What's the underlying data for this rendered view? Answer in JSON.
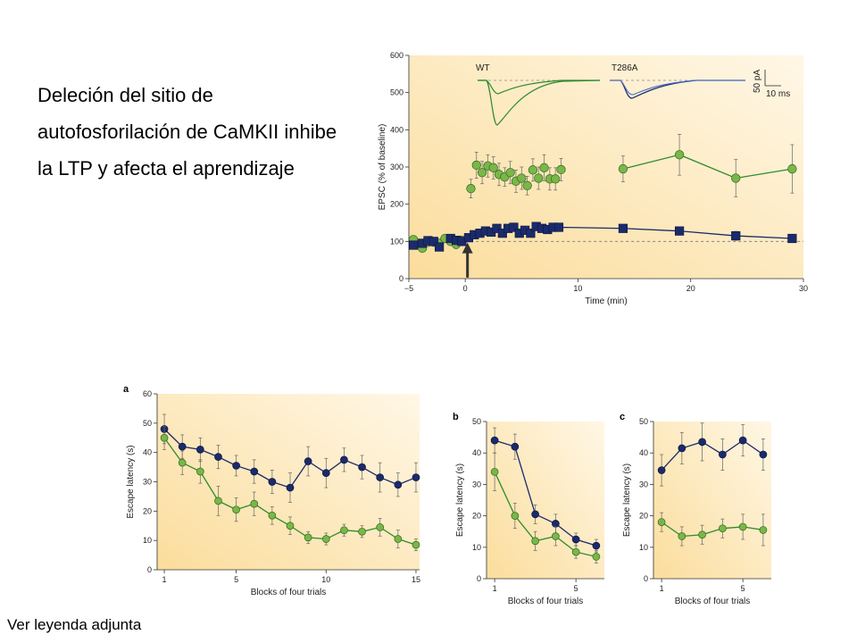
{
  "slide": {
    "title": "Deleción del sitio de autofosforilación de CaMKII inhibe la LTP y afecta el aprendizaje",
    "footnote": "Ver leyenda adjunta"
  },
  "colors": {
    "wt": "#7ab648",
    "wt_line": "#2e8b2e",
    "t286a": "#1b2a6b",
    "bg_light": "#fff7e6",
    "bg_dark": "#fbdd9c"
  },
  "icons": {
    "arrow": "up-arrow-icon"
  },
  "chart_data": [
    {
      "id": "ltp",
      "type": "line",
      "panel": "",
      "title": "",
      "xlabel": "Time (min)",
      "ylabel": "EPSC (% of baseline)",
      "xlim": [
        -5,
        30
      ],
      "ylim": [
        0,
        600
      ],
      "xticks": [
        -5,
        0,
        10,
        20,
        30
      ],
      "xtick_labels": [
        "−5",
        "0",
        "10",
        "20",
        "30"
      ],
      "yticks": [
        0,
        100,
        200,
        300,
        400,
        500,
        600
      ],
      "baseline": 100,
      "stimulus_time": 0.2,
      "inset": {
        "left_label": "WT",
        "right_label": "T286A",
        "scale_y": "50 pA",
        "scale_x": "10 ms"
      },
      "series": [
        {
          "name": "WT",
          "marker": "circle",
          "x": [
            -4.6,
            -3.8,
            -3.3,
            -2.8,
            -2.3,
            -1.8,
            -1.3,
            -0.8,
            -0.3,
            0.5,
            1.0,
            1.5,
            2.0,
            2.5,
            3.0,
            3.5,
            4.0,
            4.5,
            5.0,
            5.5,
            6.0,
            6.5,
            7.0,
            7.5,
            8.0,
            8.5,
            14,
            19,
            24,
            29
          ],
          "y": [
            105,
            82,
            98,
            98,
            95,
            108,
            100,
            92,
            103,
            242,
            305,
            285,
            303,
            298,
            280,
            273,
            285,
            262,
            270,
            250,
            292,
            270,
            298,
            268,
            268,
            293,
            295,
            333,
            270,
            295
          ],
          "err": [
            8,
            8,
            8,
            8,
            8,
            8,
            8,
            8,
            8,
            25,
            35,
            30,
            30,
            30,
            30,
            25,
            30,
            30,
            30,
            25,
            30,
            30,
            35,
            30,
            30,
            30,
            35,
            55,
            50,
            65
          ],
          "line_from_index": 26
        },
        {
          "name": "T286A",
          "marker": "square",
          "x": [
            -4.6,
            -3.8,
            -3.3,
            -2.8,
            -2.3,
            -1.3,
            -0.8,
            -0.3,
            0.3,
            0.8,
            1.3,
            1.8,
            2.3,
            2.8,
            3.3,
            3.8,
            4.3,
            4.8,
            5.3,
            5.8,
            6.3,
            6.8,
            7.3,
            7.8,
            8.3,
            14,
            19,
            24,
            29
          ],
          "y": [
            90,
            95,
            102,
            100,
            85,
            108,
            103,
            100,
            110,
            118,
            122,
            128,
            125,
            135,
            122,
            135,
            138,
            122,
            130,
            122,
            140,
            135,
            132,
            138,
            138,
            135,
            128,
            115,
            108
          ],
          "err": [
            8,
            8,
            8,
            8,
            8,
            8,
            8,
            8,
            8,
            8,
            8,
            8,
            8,
            8,
            8,
            8,
            8,
            8,
            8,
            8,
            8,
            8,
            8,
            10,
            10,
            10,
            10,
            12,
            10
          ],
          "line_from_index": 24
        }
      ]
    },
    {
      "id": "a",
      "type": "line",
      "panel": "a",
      "xlabel": "Blocks of four trials",
      "ylabel": "Escape latency (s)",
      "xlim": [
        0.6,
        15.2
      ],
      "ylim": [
        0,
        60
      ],
      "xticks": [
        1,
        5,
        10,
        15
      ],
      "yticks": [
        0,
        10,
        20,
        30,
        40,
        50,
        60
      ],
      "series": [
        {
          "name": "T286A",
          "x": [
            1,
            2,
            3,
            4,
            5,
            6,
            7,
            8,
            9,
            10,
            11,
            12,
            13,
            14,
            15
          ],
          "y": [
            48,
            42,
            41,
            38.5,
            35.5,
            33.5,
            30,
            28,
            37,
            33,
            37.5,
            35,
            31.5,
            29,
            31.5
          ],
          "err": [
            5,
            4,
            4,
            4,
            3.5,
            4,
            4,
            5,
            5,
            5,
            4,
            4,
            5,
            4,
            5
          ]
        },
        {
          "name": "WT",
          "x": [
            1,
            2,
            3,
            4,
            5,
            6,
            7,
            8,
            9,
            10,
            11,
            12,
            13,
            14,
            15
          ],
          "y": [
            45,
            36.5,
            33.5,
            23.5,
            20.5,
            22.5,
            18.5,
            15,
            11,
            10.5,
            13.5,
            13,
            14.5,
            10.5,
            8.5
          ],
          "err": [
            4,
            4,
            4,
            5,
            4,
            4,
            3,
            3,
            2,
            2,
            2,
            2,
            3,
            3,
            2
          ]
        }
      ]
    },
    {
      "id": "b",
      "type": "line",
      "panel": "b",
      "xlabel": "Blocks of four trials",
      "ylabel": "Escape latency (s)",
      "xlim": [
        0.6,
        6.4
      ],
      "ylim": [
        0,
        50
      ],
      "xticks": [
        1,
        5
      ],
      "yticks": [
        0,
        10,
        20,
        30,
        40,
        50
      ],
      "series": [
        {
          "name": "T286A",
          "x": [
            1,
            2,
            3,
            4,
            5,
            6
          ],
          "y": [
            44,
            42,
            20.5,
            17.5,
            12.5,
            10.5
          ],
          "err": [
            4,
            4,
            3,
            3,
            2,
            2
          ]
        },
        {
          "name": "WT",
          "x": [
            1,
            2,
            3,
            4,
            5,
            6
          ],
          "y": [
            34,
            20,
            12,
            13.5,
            8.5,
            7
          ],
          "err": [
            6,
            4,
            3,
            3,
            2,
            2
          ]
        }
      ]
    },
    {
      "id": "c",
      "type": "line",
      "panel": "c",
      "xlabel": "Blocks of four trials",
      "ylabel": "Escape latency (s)",
      "xlim": [
        0.6,
        6.4
      ],
      "ylim": [
        0,
        50
      ],
      "xticks": [
        1,
        5
      ],
      "yticks": [
        0,
        10,
        20,
        30,
        40,
        50
      ],
      "series": [
        {
          "name": "T286A",
          "x": [
            1,
            2,
            3,
            4,
            5,
            6
          ],
          "y": [
            34.5,
            41.5,
            43.5,
            39.5,
            44,
            39.5
          ],
          "err": [
            5,
            5,
            6,
            5,
            5,
            5
          ]
        },
        {
          "name": "WT",
          "x": [
            1,
            2,
            3,
            4,
            5,
            6
          ],
          "y": [
            18,
            13.5,
            14,
            16,
            16.5,
            15.5
          ],
          "err": [
            3,
            3,
            3,
            3,
            4,
            5
          ]
        }
      ]
    }
  ]
}
